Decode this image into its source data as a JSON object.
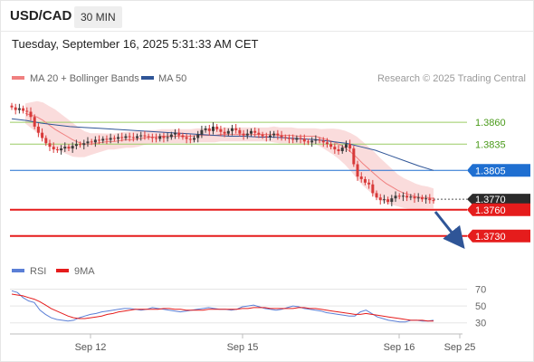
{
  "header": {
    "symbol": "USD/CAD",
    "timeframe": "30 MIN",
    "datetime": "Tuesday, September 16, 2025 5:31:33 AM CET"
  },
  "legend": {
    "ma20": "MA 20 + Bollinger Bands",
    "ma50": "MA 50",
    "credit": "Research © 2025 Trading Central"
  },
  "rsi_legend": {
    "rsi": "RSI",
    "ma": "9MA"
  },
  "colors": {
    "up": "#3a3a3a",
    "down": "#d83a3a",
    "bollinger": "#f7c4c4",
    "ma20": "#f08080",
    "ma50": "#2f5597",
    "green_level": "#9ccc65",
    "blue_level": "#1f6fd1",
    "red_level": "#e51c1c",
    "arrow": "#2f5597"
  },
  "chart_data": [
    {
      "type": "candlestick",
      "title": "USD/CAD 30 MIN",
      "x_ticks": [
        "Sep 12",
        "Sep 15",
        "Sep 16",
        "Sep 25"
      ],
      "ylim": [
        1.3706,
        1.3888
      ],
      "levels": [
        {
          "value": 1.386,
          "label": "1.3860",
          "style": "green"
        },
        {
          "value": 1.3835,
          "label": "1.3835",
          "style": "green"
        },
        {
          "value": 1.3805,
          "label": "1.3805",
          "style": "blue"
        },
        {
          "value": 1.377,
          "label": "1.3770",
          "style": "last"
        },
        {
          "value": 1.376,
          "label": "1.3760",
          "style": "red"
        },
        {
          "value": 1.373,
          "label": "1.3730",
          "style": "red"
        }
      ],
      "last_price": 1.377,
      "forecast_target": 1.373,
      "closes": [
        1.3877,
        1.3874,
        1.3876,
        1.3873,
        1.3872,
        1.3866,
        1.3855,
        1.3848,
        1.3842,
        1.3836,
        1.3832,
        1.3829,
        1.3828,
        1.383,
        1.3832,
        1.383,
        1.3833,
        1.3835,
        1.3834,
        1.3836,
        1.3838,
        1.3837,
        1.384,
        1.3839,
        1.3841,
        1.384,
        1.3842,
        1.3841,
        1.3843,
        1.3842,
        1.3844,
        1.3843,
        1.3842,
        1.3844,
        1.3845,
        1.3844,
        1.3843,
        1.3842,
        1.3841,
        1.3844,
        1.3842,
        1.3843,
        1.3846,
        1.3848,
        1.3845,
        1.3843,
        1.3841,
        1.384,
        1.3842,
        1.3846,
        1.3851,
        1.3853,
        1.385,
        1.3855,
        1.3852,
        1.3849,
        1.3847,
        1.385,
        1.3853,
        1.3851,
        1.3847,
        1.3845,
        1.3847,
        1.385,
        1.3848,
        1.3846,
        1.3844,
        1.3843,
        1.3845,
        1.3847,
        1.3845,
        1.3843,
        1.3842,
        1.3841,
        1.384,
        1.3842,
        1.3841,
        1.3838,
        1.3837,
        1.3839,
        1.384,
        1.3839,
        1.3837,
        1.3835,
        1.3832,
        1.3829,
        1.3827,
        1.3831,
        1.3835,
        1.383,
        1.3812,
        1.3798,
        1.3795,
        1.3791,
        1.3789,
        1.3779,
        1.3774,
        1.3771,
        1.3772,
        1.3769,
        1.3773,
        1.3776,
        1.3775,
        1.3776,
        1.3774,
        1.3775,
        1.3773,
        1.3774,
        1.3772,
        1.3773,
        1.3771,
        1.377
      ],
      "ma20": [
        1.387,
        1.3868,
        1.3866,
        1.3862,
        1.3857,
        1.3852,
        1.3848,
        1.3844,
        1.384,
        1.3837,
        1.3835,
        1.3835,
        1.3836,
        1.3837,
        1.3838,
        1.3838,
        1.3839,
        1.384,
        1.384,
        1.3841,
        1.3842,
        1.3843,
        1.3843,
        1.3844,
        1.3844,
        1.3844,
        1.3844,
        1.3844,
        1.3844,
        1.3845,
        1.3845,
        1.3845,
        1.3845,
        1.3846,
        1.3846,
        1.3846,
        1.3846,
        1.3846,
        1.3846,
        1.3846,
        1.3846,
        1.3846,
        1.3846,
        1.3845,
        1.3845,
        1.3845,
        1.3844,
        1.3844,
        1.3844,
        1.3844,
        1.3842,
        1.384,
        1.3838,
        1.3835,
        1.3831,
        1.3826,
        1.382,
        1.3813,
        1.3807,
        1.3801,
        1.3795,
        1.379,
        1.3786,
        1.3782,
        1.3779,
        1.3777,
        1.3775,
        1.3774,
        1.3774,
        1.3773
      ],
      "ma50": [
        1.3864,
        1.3862,
        1.3859,
        1.3857,
        1.3855,
        1.3854,
        1.3853,
        1.3852,
        1.3851,
        1.385,
        1.3849,
        1.3848,
        1.3847,
        1.3846,
        1.3845,
        1.3844,
        1.3844,
        1.3843,
        1.3843,
        1.3842,
        1.3841,
        1.384,
        1.3838,
        1.3836,
        1.3832,
        1.3828,
        1.3822,
        1.3816,
        1.381,
        1.3805
      ]
    },
    {
      "type": "line",
      "title": "RSI",
      "series_names": [
        "RSI",
        "9MA"
      ],
      "y_ticks": [
        70,
        50,
        30
      ],
      "ylim": [
        20,
        78
      ],
      "rsi": [
        68,
        66,
        60,
        56,
        54,
        45,
        40,
        36,
        34,
        33,
        32,
        33,
        36,
        38,
        40,
        41,
        43,
        44,
        45,
        46,
        47,
        47,
        46,
        45,
        46,
        48,
        47,
        46,
        45,
        44,
        43,
        44,
        45,
        46,
        47,
        48,
        47,
        46,
        46,
        45,
        46,
        49,
        50,
        51,
        49,
        47,
        46,
        45,
        46,
        48,
        50,
        49,
        47,
        46,
        45,
        44,
        42,
        41,
        40,
        39,
        38,
        38,
        43,
        45,
        41,
        37,
        35,
        33,
        32,
        31,
        31,
        33,
        33,
        32,
        32,
        33
      ],
      "ma9": [
        64,
        63,
        62,
        60,
        58,
        55,
        51,
        47,
        44,
        41,
        38,
        36,
        35,
        35,
        36,
        37,
        38,
        40,
        41,
        43,
        44,
        45,
        46,
        46,
        46,
        46,
        46,
        47,
        47,
        46,
        46,
        45,
        45,
        45,
        45,
        46,
        46,
        46,
        46,
        46,
        46,
        47,
        47,
        48,
        48,
        48,
        47,
        47,
        47,
        47,
        47,
        48,
        48,
        47,
        47,
        46,
        45,
        44,
        43,
        42,
        41,
        40,
        40,
        41,
        40,
        39,
        38,
        37,
        36,
        35,
        34,
        33,
        33,
        33,
        32,
        32
      ]
    }
  ]
}
